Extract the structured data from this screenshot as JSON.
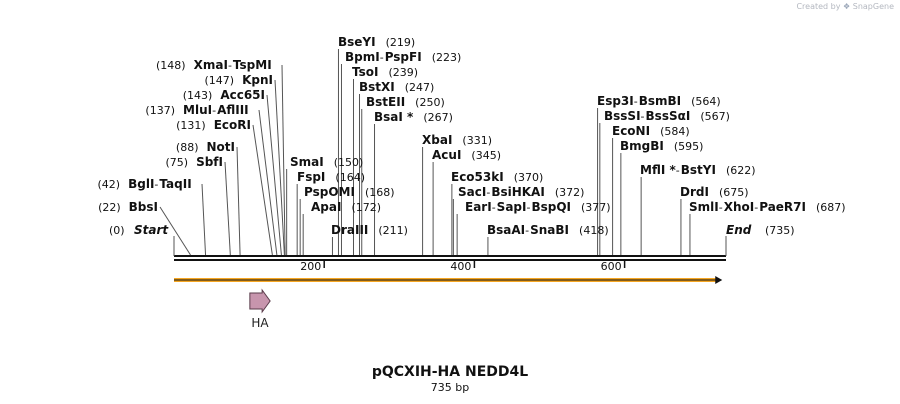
{
  "credit": {
    "prefix": "Created by",
    "brand": "SnapGene"
  },
  "map": {
    "name": "pQCXIH-HA NEDD4L",
    "size_label": "735 bp",
    "length": 735,
    "ticks": [
      {
        "pos": 200,
        "label": "200"
      },
      {
        "pos": 400,
        "label": "400"
      },
      {
        "pos": 600,
        "label": "600"
      }
    ],
    "ends": [
      {
        "pos": 0,
        "name": "Start",
        "pos_label": "(0)"
      },
      {
        "pos": 735,
        "name": "End",
        "pos_label": "(735)"
      }
    ],
    "features": [
      {
        "name": "HA",
        "start": 101,
        "end": 128,
        "color": "#c795ad"
      }
    ],
    "orf": {
      "start": 0,
      "end": 730,
      "color": "#f5a623"
    },
    "site_groups": [
      {
        "side": "left",
        "pos_label": "(148)",
        "names": [
          "XmaI",
          "TspMI"
        ],
        "cuts": [
          148,
          148
        ]
      },
      {
        "side": "left",
        "pos_label": "(147)",
        "names": [
          "KpnI"
        ],
        "cuts": [
          147
        ]
      },
      {
        "side": "left",
        "pos_label": "(143)",
        "names": [
          "Acc65I"
        ],
        "cuts": [
          143
        ]
      },
      {
        "side": "left",
        "pos_label": "(137)",
        "names": [
          "MluI",
          "AflIII"
        ],
        "cuts": [
          137,
          137
        ]
      },
      {
        "side": "left",
        "pos_label": "(131)",
        "names": [
          "EcoRI"
        ],
        "cuts": [
          131
        ]
      },
      {
        "side": "left",
        "pos_label": "(88)",
        "names": [
          "NotI"
        ],
        "cuts": [
          88
        ]
      },
      {
        "side": "left",
        "pos_label": "(75)",
        "names": [
          "SbfI"
        ],
        "cuts": [
          75
        ]
      },
      {
        "side": "left",
        "pos_label": "(42)",
        "names": [
          "BglI",
          "TaqII"
        ],
        "cuts": [
          42,
          42
        ]
      },
      {
        "side": "left",
        "pos_label": "(22)",
        "names": [
          "BbsI"
        ],
        "cuts": [
          22
        ]
      },
      {
        "side": "right",
        "pos_label": "(219)",
        "names": [
          "BseYI"
        ],
        "cuts": [
          219
        ]
      },
      {
        "side": "right",
        "pos_label": "(223)",
        "names": [
          "BpmI",
          "PspFI"
        ],
        "cuts": [
          223,
          223
        ]
      },
      {
        "side": "right",
        "pos_label": "(239)",
        "names": [
          "TsoI"
        ],
        "cuts": [
          239
        ]
      },
      {
        "side": "right",
        "pos_label": "(247)",
        "names": [
          "BstXI"
        ],
        "cuts": [
          247
        ]
      },
      {
        "side": "right",
        "pos_label": "(250)",
        "names": [
          "BstEII"
        ],
        "cuts": [
          250
        ]
      },
      {
        "side": "right",
        "pos_label": "(267)",
        "names": [
          "BsaI *"
        ],
        "cuts": [
          267
        ]
      },
      {
        "side": "right",
        "pos_label": "(150)",
        "names": [
          "SmaI"
        ],
        "cuts": [
          150
        ]
      },
      {
        "side": "right",
        "pos_label": "(164)",
        "names": [
          "FspI"
        ],
        "cuts": [
          164
        ]
      },
      {
        "side": "right",
        "pos_label": "(168)",
        "names": [
          "PspOMI"
        ],
        "cuts": [
          168
        ]
      },
      {
        "side": "right",
        "pos_label": "(172)",
        "names": [
          "ApaI"
        ],
        "cuts": [
          172
        ]
      },
      {
        "side": "right",
        "pos_label": "(211)",
        "names": [
          "DraIII"
        ],
        "cuts": [
          211
        ]
      },
      {
        "side": "right",
        "pos_label": "(331)",
        "names": [
          "XbaI"
        ],
        "cuts": [
          331
        ]
      },
      {
        "side": "right",
        "pos_label": "(345)",
        "names": [
          "AcuI"
        ],
        "cuts": [
          345
        ]
      },
      {
        "side": "right",
        "pos_label": "(370)",
        "names": [
          "Eco53kI"
        ],
        "cuts": [
          370
        ]
      },
      {
        "side": "right",
        "pos_label": "(372)",
        "names": [
          "SacI",
          "BsiHKAI"
        ],
        "cuts": [
          372,
          372
        ]
      },
      {
        "side": "right",
        "pos_label": "(377)",
        "names": [
          "EarI",
          "SapI",
          "BspQI"
        ],
        "cuts": [
          377,
          377,
          377
        ]
      },
      {
        "side": "right",
        "pos_label": "(418)",
        "names": [
          "BsaAI",
          "SnaBI"
        ],
        "cuts": [
          418,
          418
        ]
      },
      {
        "side": "right",
        "pos_label": "(564)",
        "names": [
          "Esp3I",
          "BsmBI"
        ],
        "cuts": [
          564,
          564
        ]
      },
      {
        "side": "right",
        "pos_label": "(567)",
        "names": [
          "BssSI",
          "BssSαI"
        ],
        "cuts": [
          567,
          567
        ]
      },
      {
        "side": "right",
        "pos_label": "(584)",
        "names": [
          "EcoNI"
        ],
        "cuts": [
          584
        ]
      },
      {
        "side": "right",
        "pos_label": "(595)",
        "names": [
          "BmgBI"
        ],
        "cuts": [
          595
        ]
      },
      {
        "side": "right",
        "pos_label": "(622)",
        "names": [
          "MflI *",
          "BstYI"
        ],
        "cuts": [
          622,
          622
        ]
      },
      {
        "side": "right",
        "pos_label": "(675)",
        "names": [
          "DrdI"
        ],
        "cuts": [
          675
        ]
      },
      {
        "side": "right",
        "pos_label": "(687)",
        "names": [
          "SmlI",
          "XhoI",
          "PaeR7I"
        ],
        "cuts": [
          687,
          687,
          687
        ]
      }
    ]
  }
}
